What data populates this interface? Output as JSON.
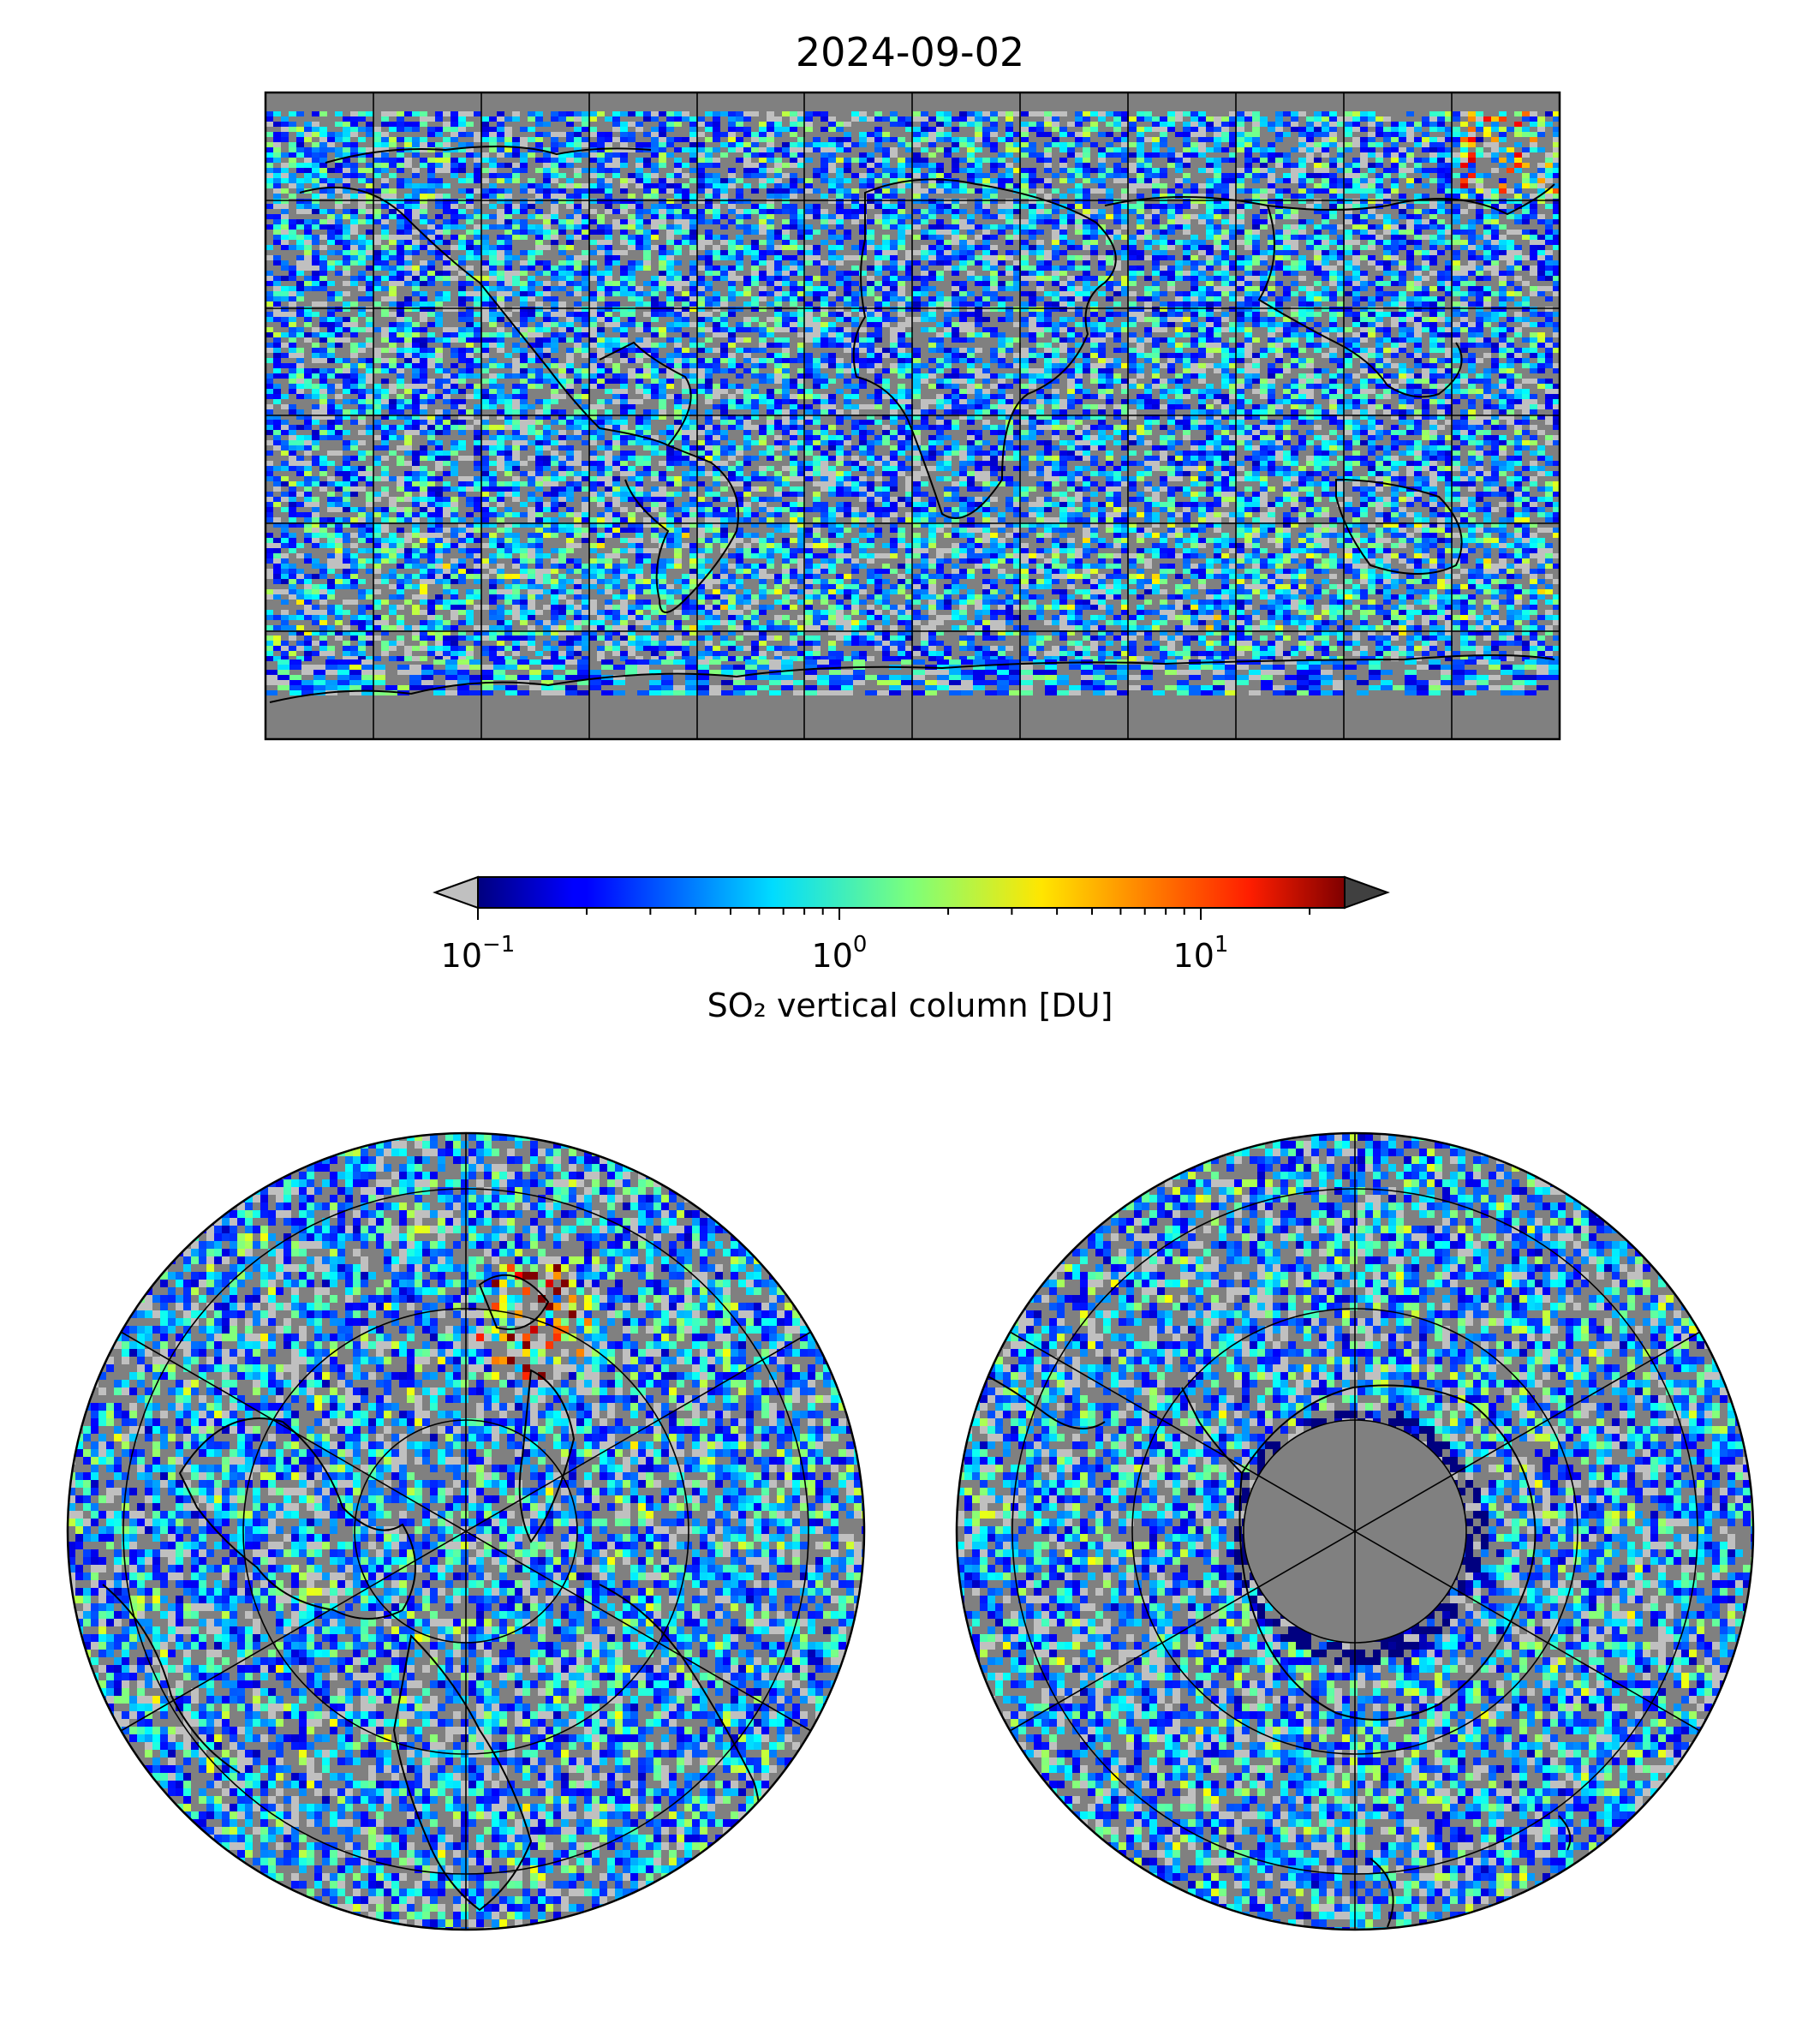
{
  "title": "2024-09-02",
  "colorbar": {
    "label": "SO₂ vertical column [DU]",
    "scale": "log",
    "range": [
      0.1,
      25
    ],
    "colormap": "jet",
    "under_color": "#c0c0c0",
    "over_color": "#404040",
    "ticks": [
      {
        "base": "10",
        "exp": "−1",
        "value": 0.1
      },
      {
        "base": "10",
        "exp": "0",
        "value": 1
      },
      {
        "base": "10",
        "exp": "1",
        "value": 10
      }
    ]
  },
  "maps": [
    {
      "name": "global",
      "projection": "plate-carree",
      "background": "#808080",
      "gridlines": true
    },
    {
      "name": "north-polar",
      "projection": "north-polar-stereographic",
      "background": "#808080",
      "gridlines": true
    },
    {
      "name": "south-polar",
      "projection": "south-polar-stereographic",
      "background": "#808080",
      "gridlines": true
    }
  ],
  "colors": {
    "land_outline": "#000000",
    "no_data": "#808080"
  }
}
